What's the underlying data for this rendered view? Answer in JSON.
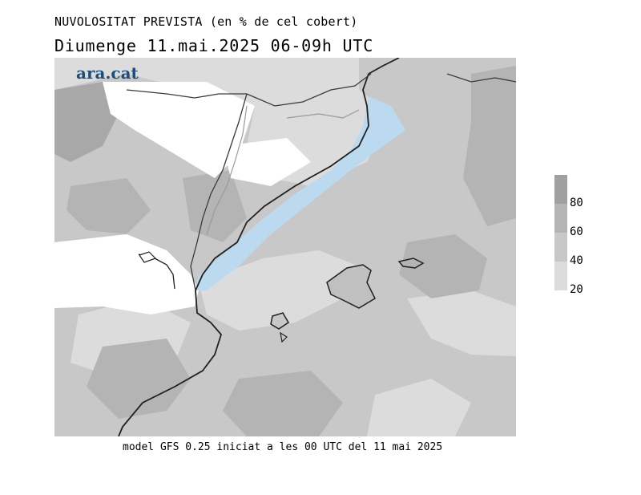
{
  "header": {
    "title": "NUVOLOSITAT PREVISTA (en % de cel cobert)",
    "subtitle": "Diumenge  11.mai.2025 06-09h UTC"
  },
  "logo": {
    "text": "ara.cat",
    "color": "#1d4e79"
  },
  "footer": {
    "text": "model GFS 0.25 iniciat a les 00 UTC del 11 mai 2025"
  },
  "legend": {
    "ticks": [
      "80",
      "60",
      "40",
      "20"
    ],
    "colors": [
      "#a0a0a0",
      "#b4b4b4",
      "#c8c8c8",
      "#dcdcdc"
    ]
  },
  "map": {
    "colors": {
      "clear": "#ffffff",
      "low": "#dcdcdc",
      "mid": "#c8c8c8",
      "high": "#b4b4b4",
      "very_high": "#a0a0a0",
      "water_highlight": "#bcdaef",
      "coast": "#202020",
      "border": "#9a9a9a"
    },
    "features": [
      "coastline",
      "regional-borders",
      "mallorca",
      "menorca",
      "eivissa",
      "precip-highlight"
    ]
  }
}
